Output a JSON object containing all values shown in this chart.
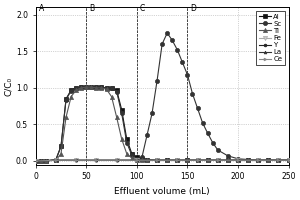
{
  "xlabel": "Effluent volume (mL)",
  "ylabel": "C/C₀",
  "xlim": [
    0,
    250
  ],
  "ylim": [
    -0.05,
    2.1
  ],
  "yticks": [
    0.0,
    0.5,
    1.0,
    1.5,
    2.0
  ],
  "xticks": [
    0,
    50,
    100,
    150,
    200,
    250
  ],
  "zone_lines": [
    50,
    100,
    150
  ],
  "zone_labels": [
    [
      "A",
      3
    ],
    [
      "B",
      53
    ],
    [
      "C",
      103
    ],
    [
      "D",
      153
    ]
  ],
  "series": {
    "Al": {
      "x": [
        0,
        5,
        10,
        20,
        25,
        30,
        35,
        40,
        45,
        50,
        55,
        60,
        65,
        70,
        75,
        80,
        85,
        90,
        95,
        100,
        105,
        110,
        120,
        130,
        140,
        150,
        160,
        170,
        180,
        190,
        200,
        210,
        220,
        230,
        240,
        250
      ],
      "y": [
        0,
        0,
        0,
        0.02,
        0.2,
        0.85,
        0.97,
        1.0,
        1.01,
        1.01,
        1.01,
        1.01,
        1.01,
        1.0,
        1.0,
        0.97,
        0.7,
        0.3,
        0.1,
        0.05,
        0.03,
        0.02,
        0.01,
        0.01,
        0.01,
        0.01,
        0.01,
        0.01,
        0.01,
        0.01,
        0.01,
        0.01,
        0.01,
        0.01,
        0.01,
        0.01
      ],
      "marker": "s",
      "color": "#111111",
      "markersize": 3
    },
    "Sc": {
      "x": [
        0,
        5,
        10,
        20,
        25,
        30,
        35,
        40,
        45,
        50,
        55,
        60,
        65,
        70,
        75,
        80,
        85,
        90,
        95,
        100,
        105,
        110,
        115,
        120,
        125,
        130,
        135,
        140,
        145,
        150,
        155,
        160,
        165,
        170,
        175,
        180,
        190,
        200,
        210,
        220,
        230,
        240,
        250
      ],
      "y": [
        0,
        0,
        0,
        0.02,
        0.2,
        0.84,
        0.96,
        1.0,
        1.01,
        1.01,
        1.01,
        1.01,
        1.01,
        1.0,
        1.0,
        0.95,
        0.65,
        0.25,
        0.08,
        0.03,
        0.05,
        0.35,
        0.65,
        1.1,
        1.6,
        1.75,
        1.65,
        1.52,
        1.35,
        1.18,
        0.92,
        0.72,
        0.52,
        0.38,
        0.25,
        0.15,
        0.07,
        0.03,
        0.02,
        0.01,
        0.01,
        0.01,
        0.01
      ],
      "marker": "o",
      "color": "#333333",
      "markersize": 3
    },
    "Ti": {
      "x": [
        0,
        5,
        10,
        20,
        25,
        30,
        35,
        40,
        45,
        50,
        55,
        60,
        65,
        70,
        75,
        80,
        85,
        90,
        95,
        100,
        105,
        110,
        120,
        130,
        140,
        150,
        160,
        170,
        180,
        190,
        200,
        210,
        220,
        230,
        240,
        250
      ],
      "y": [
        0,
        0,
        0,
        0.01,
        0.1,
        0.6,
        0.88,
        0.97,
        1.0,
        1.01,
        1.01,
        1.0,
        1.0,
        0.98,
        0.88,
        0.6,
        0.3,
        0.1,
        0.04,
        0.02,
        0.01,
        0.01,
        0.01,
        0.01,
        0.01,
        0.01,
        0.01,
        0.01,
        0.01,
        0.01,
        0.01,
        0.01,
        0.01,
        0.01,
        0.01,
        0.01
      ],
      "marker": "^",
      "color": "#555555",
      "markersize": 3
    },
    "Fe": {
      "x": [
        0,
        20,
        40,
        60,
        80,
        100,
        120,
        140,
        160,
        180,
        200,
        220,
        240,
        250
      ],
      "y": [
        0,
        0.01,
        0.01,
        0.01,
        0.01,
        0.01,
        0.01,
        0.01,
        0.01,
        0.01,
        0.01,
        0.01,
        0.01,
        0.01
      ],
      "marker": "v",
      "color": "#aaaaaa",
      "markersize": 3
    },
    "Y": {
      "x": [
        0,
        20,
        40,
        60,
        80,
        100,
        120,
        140,
        160,
        180,
        200,
        220,
        240,
        250
      ],
      "y": [
        0,
        0.01,
        0.01,
        0.01,
        0.01,
        0.01,
        0.01,
        0.01,
        0.01,
        0.01,
        0.01,
        0.01,
        0.01,
        0.01
      ],
      "marker": "o",
      "color": "#222222",
      "markersize": 2
    },
    "La": {
      "x": [
        0,
        20,
        40,
        60,
        80,
        100,
        120,
        140,
        160,
        180,
        200,
        220,
        240,
        250
      ],
      "y": [
        0,
        0.01,
        0.01,
        0.01,
        0.01,
        0.01,
        0.01,
        0.01,
        0.01,
        0.01,
        0.01,
        0.01,
        0.01,
        0.01
      ],
      "marker": "^",
      "color": "#333333",
      "markersize": 2
    },
    "Ce": {
      "x": [
        0,
        20,
        40,
        60,
        80,
        100,
        120,
        140,
        160,
        180,
        200,
        220,
        240,
        250
      ],
      "y": [
        0,
        0.01,
        0.01,
        0.01,
        0.01,
        0.01,
        0.01,
        0.01,
        0.01,
        0.01,
        0.01,
        0.01,
        0.01,
        0.01
      ],
      "marker": ">",
      "color": "#888888",
      "markersize": 2
    }
  }
}
